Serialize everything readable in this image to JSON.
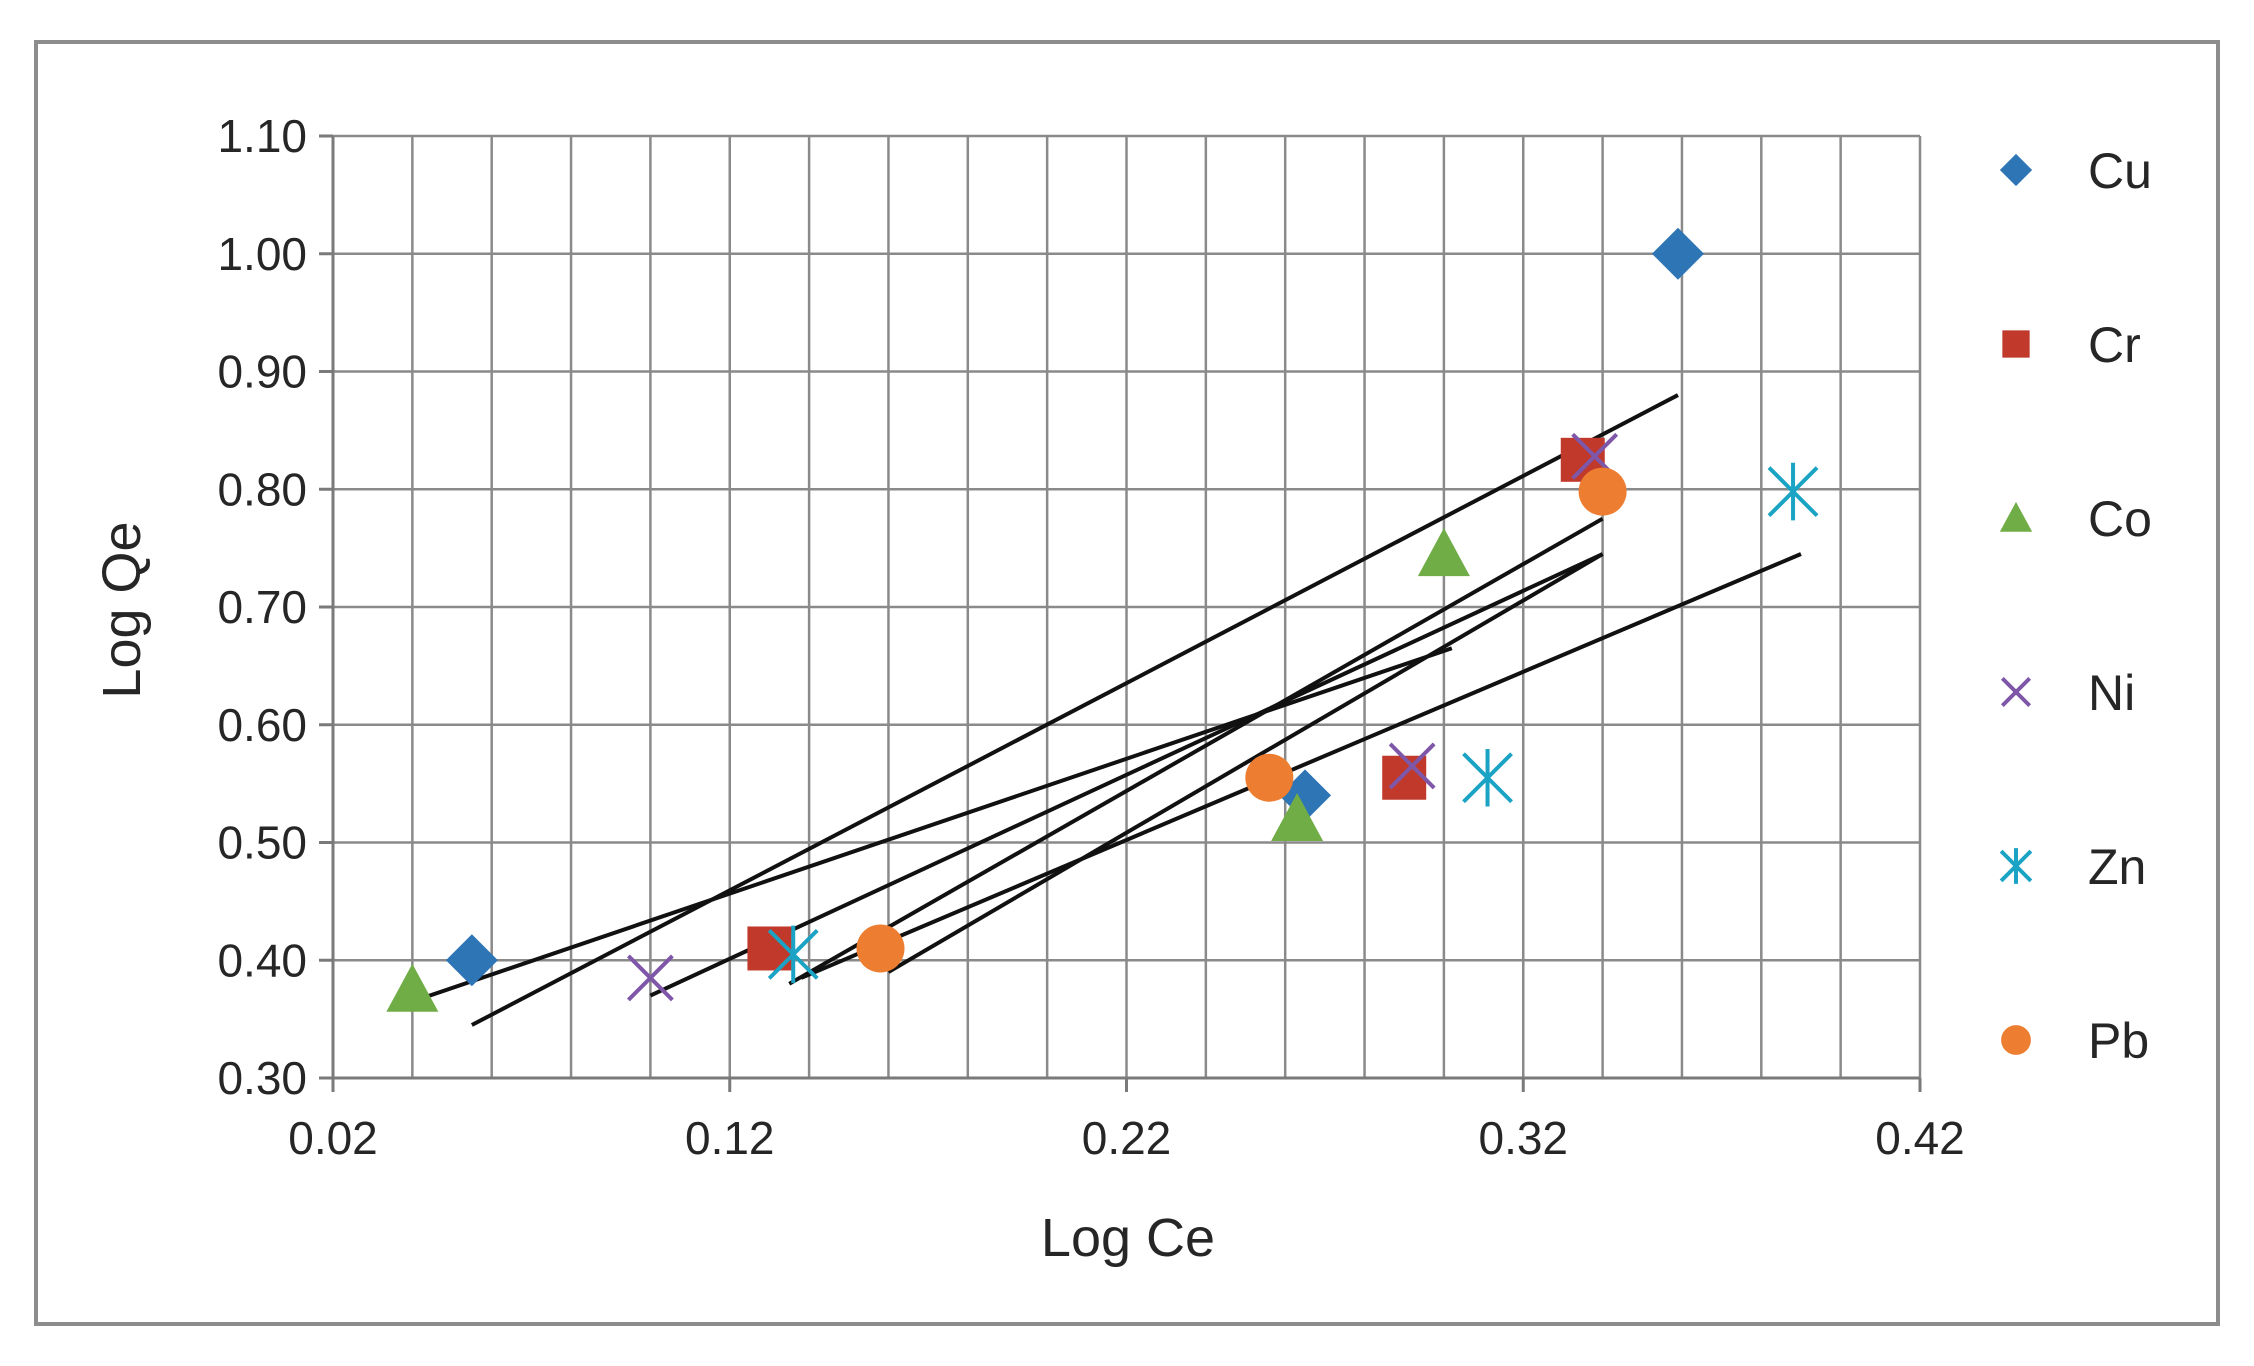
{
  "chart_data": {
    "type": "scatter",
    "title": "",
    "xlabel": "Log Ce",
    "ylabel": "Log Qe",
    "xlim": [
      0.02,
      0.42
    ],
    "ylim": [
      0.3,
      1.1
    ],
    "xticks": [
      "0.02",
      "0.12",
      "0.22",
      "0.32",
      "0.42"
    ],
    "yticks": [
      "0.30",
      "0.40",
      "0.50",
      "0.60",
      "0.70",
      "0.80",
      "0.90",
      "1.00",
      "1.10"
    ],
    "grid": true,
    "legend_position": "right",
    "series": [
      {
        "name": "Cu",
        "color": "#2e75b6",
        "marker": "diamond",
        "x": [
          0.055,
          0.265,
          0.359
        ],
        "y": [
          0.4,
          0.54,
          1.0
        ],
        "trend": [
          [
            0.055,
            0.345
          ],
          [
            0.359,
            0.88
          ]
        ]
      },
      {
        "name": "Cr",
        "color": "#c0392b",
        "marker": "square",
        "x": [
          0.13,
          0.29,
          0.335
        ],
        "y": [
          0.41,
          0.555,
          0.825
        ],
        "trend": [
          [
            0.1,
            0.37
          ],
          [
            0.34,
            0.745
          ]
        ]
      },
      {
        "name": "Co",
        "color": "#70ad47",
        "marker": "triangle",
        "x": [
          0.04,
          0.263,
          0.3
        ],
        "y": [
          0.375,
          0.52,
          0.745
        ],
        "trend": [
          [
            0.04,
            0.365
          ],
          [
            0.302,
            0.665
          ]
        ]
      },
      {
        "name": "Ni",
        "color": "#7e57a8",
        "marker": "x",
        "x": [
          0.1,
          0.292,
          0.338
        ],
        "y": [
          0.385,
          0.565,
          0.828
        ],
        "trend": [
          [
            0.135,
            0.38
          ],
          [
            0.34,
            0.775
          ]
        ]
      },
      {
        "name": "Zn",
        "color": "#1aa3c4",
        "marker": "asterisk",
        "x": [
          0.136,
          0.311,
          0.388
        ],
        "y": [
          0.405,
          0.555,
          0.798
        ],
        "trend": [
          [
            0.138,
            0.385
          ],
          [
            0.39,
            0.745
          ]
        ]
      },
      {
        "name": "Pb",
        "color": "#ed7d31",
        "marker": "circle",
        "x": [
          0.158,
          0.256,
          0.34
        ],
        "y": [
          0.41,
          0.555,
          0.798
        ],
        "trend": [
          [
            0.16,
            0.39
          ],
          [
            0.34,
            0.745
          ]
        ]
      }
    ]
  }
}
